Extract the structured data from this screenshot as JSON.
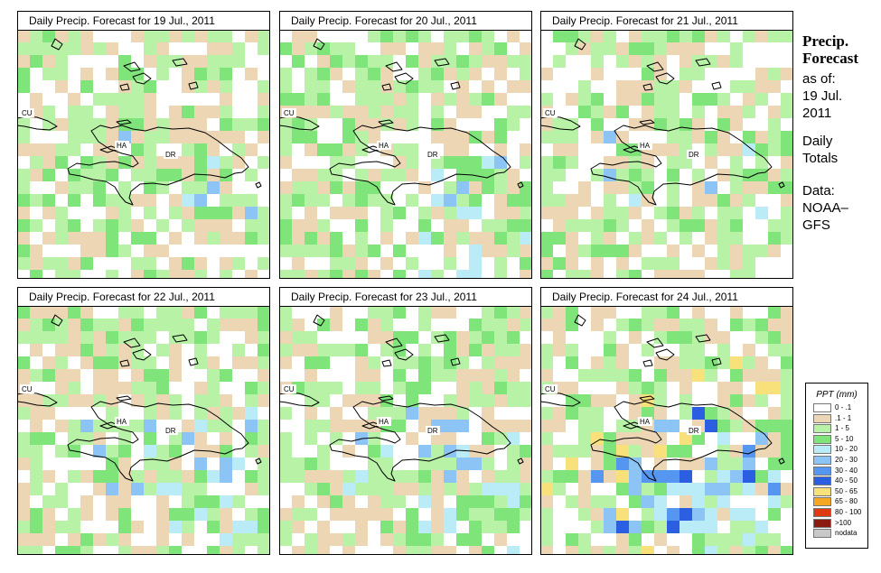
{
  "panels": [
    {
      "title": "Daily Precip. Forecast for  19 Jul., 2011",
      "seed": 19,
      "intensity": 0
    },
    {
      "title": "Daily Precip. Forecast for  20 Jul., 2011",
      "seed": 20,
      "intensity": 1
    },
    {
      "title": "Daily Precip. Forecast for  21 Jul., 2011",
      "seed": 21,
      "intensity": 0
    },
    {
      "title": "Daily Precip. Forecast for  22 Jul., 2011",
      "seed": 22,
      "intensity": 1
    },
    {
      "title": "Daily Precip. Forecast for  23 Jul., 2011",
      "seed": 23,
      "intensity": 1
    },
    {
      "title": "Daily Precip. Forecast for  24 Jul., 2011",
      "seed": 24,
      "intensity": 3
    }
  ],
  "map_labels": {
    "cuba": "CU",
    "haiti": "HA",
    "dominican_republic": "DR"
  },
  "side": {
    "title_line1": "Precip.",
    "title_line2": "Forecast",
    "asof": "as of:",
    "date_line1": "19 Jul.",
    "date_line2": "2011",
    "daily1": "Daily",
    "daily2": "Totals",
    "data1": "Data:",
    "data2": "NOAA–",
    "data3": "GFS"
  },
  "legend": {
    "title": "PPT (mm)",
    "items": [
      {
        "label": "0 - .1",
        "color": "#ffffff"
      },
      {
        "label": ".1 - 1",
        "color": "#ecd6b4"
      },
      {
        "label": "1 - 5",
        "color": "#b7f2a6"
      },
      {
        "label": "5 - 10",
        "color": "#7fe57a"
      },
      {
        "label": "10 - 20",
        "color": "#b9ecf6"
      },
      {
        "label": "20 - 30",
        "color": "#8dc4f6"
      },
      {
        "label": "30 - 40",
        "color": "#5597f0"
      },
      {
        "label": "40 - 50",
        "color": "#2b5ee0"
      },
      {
        "label": "50 - 65",
        "color": "#f8e07a"
      },
      {
        "label": "65 - 80",
        "color": "#f5a623"
      },
      {
        "label": "80 - 100",
        "color": "#e03a10"
      },
      {
        "label": ">100",
        "color": "#8b1a10"
      },
      {
        "label": "nodata",
        "color": "#c8c8c8"
      }
    ]
  }
}
